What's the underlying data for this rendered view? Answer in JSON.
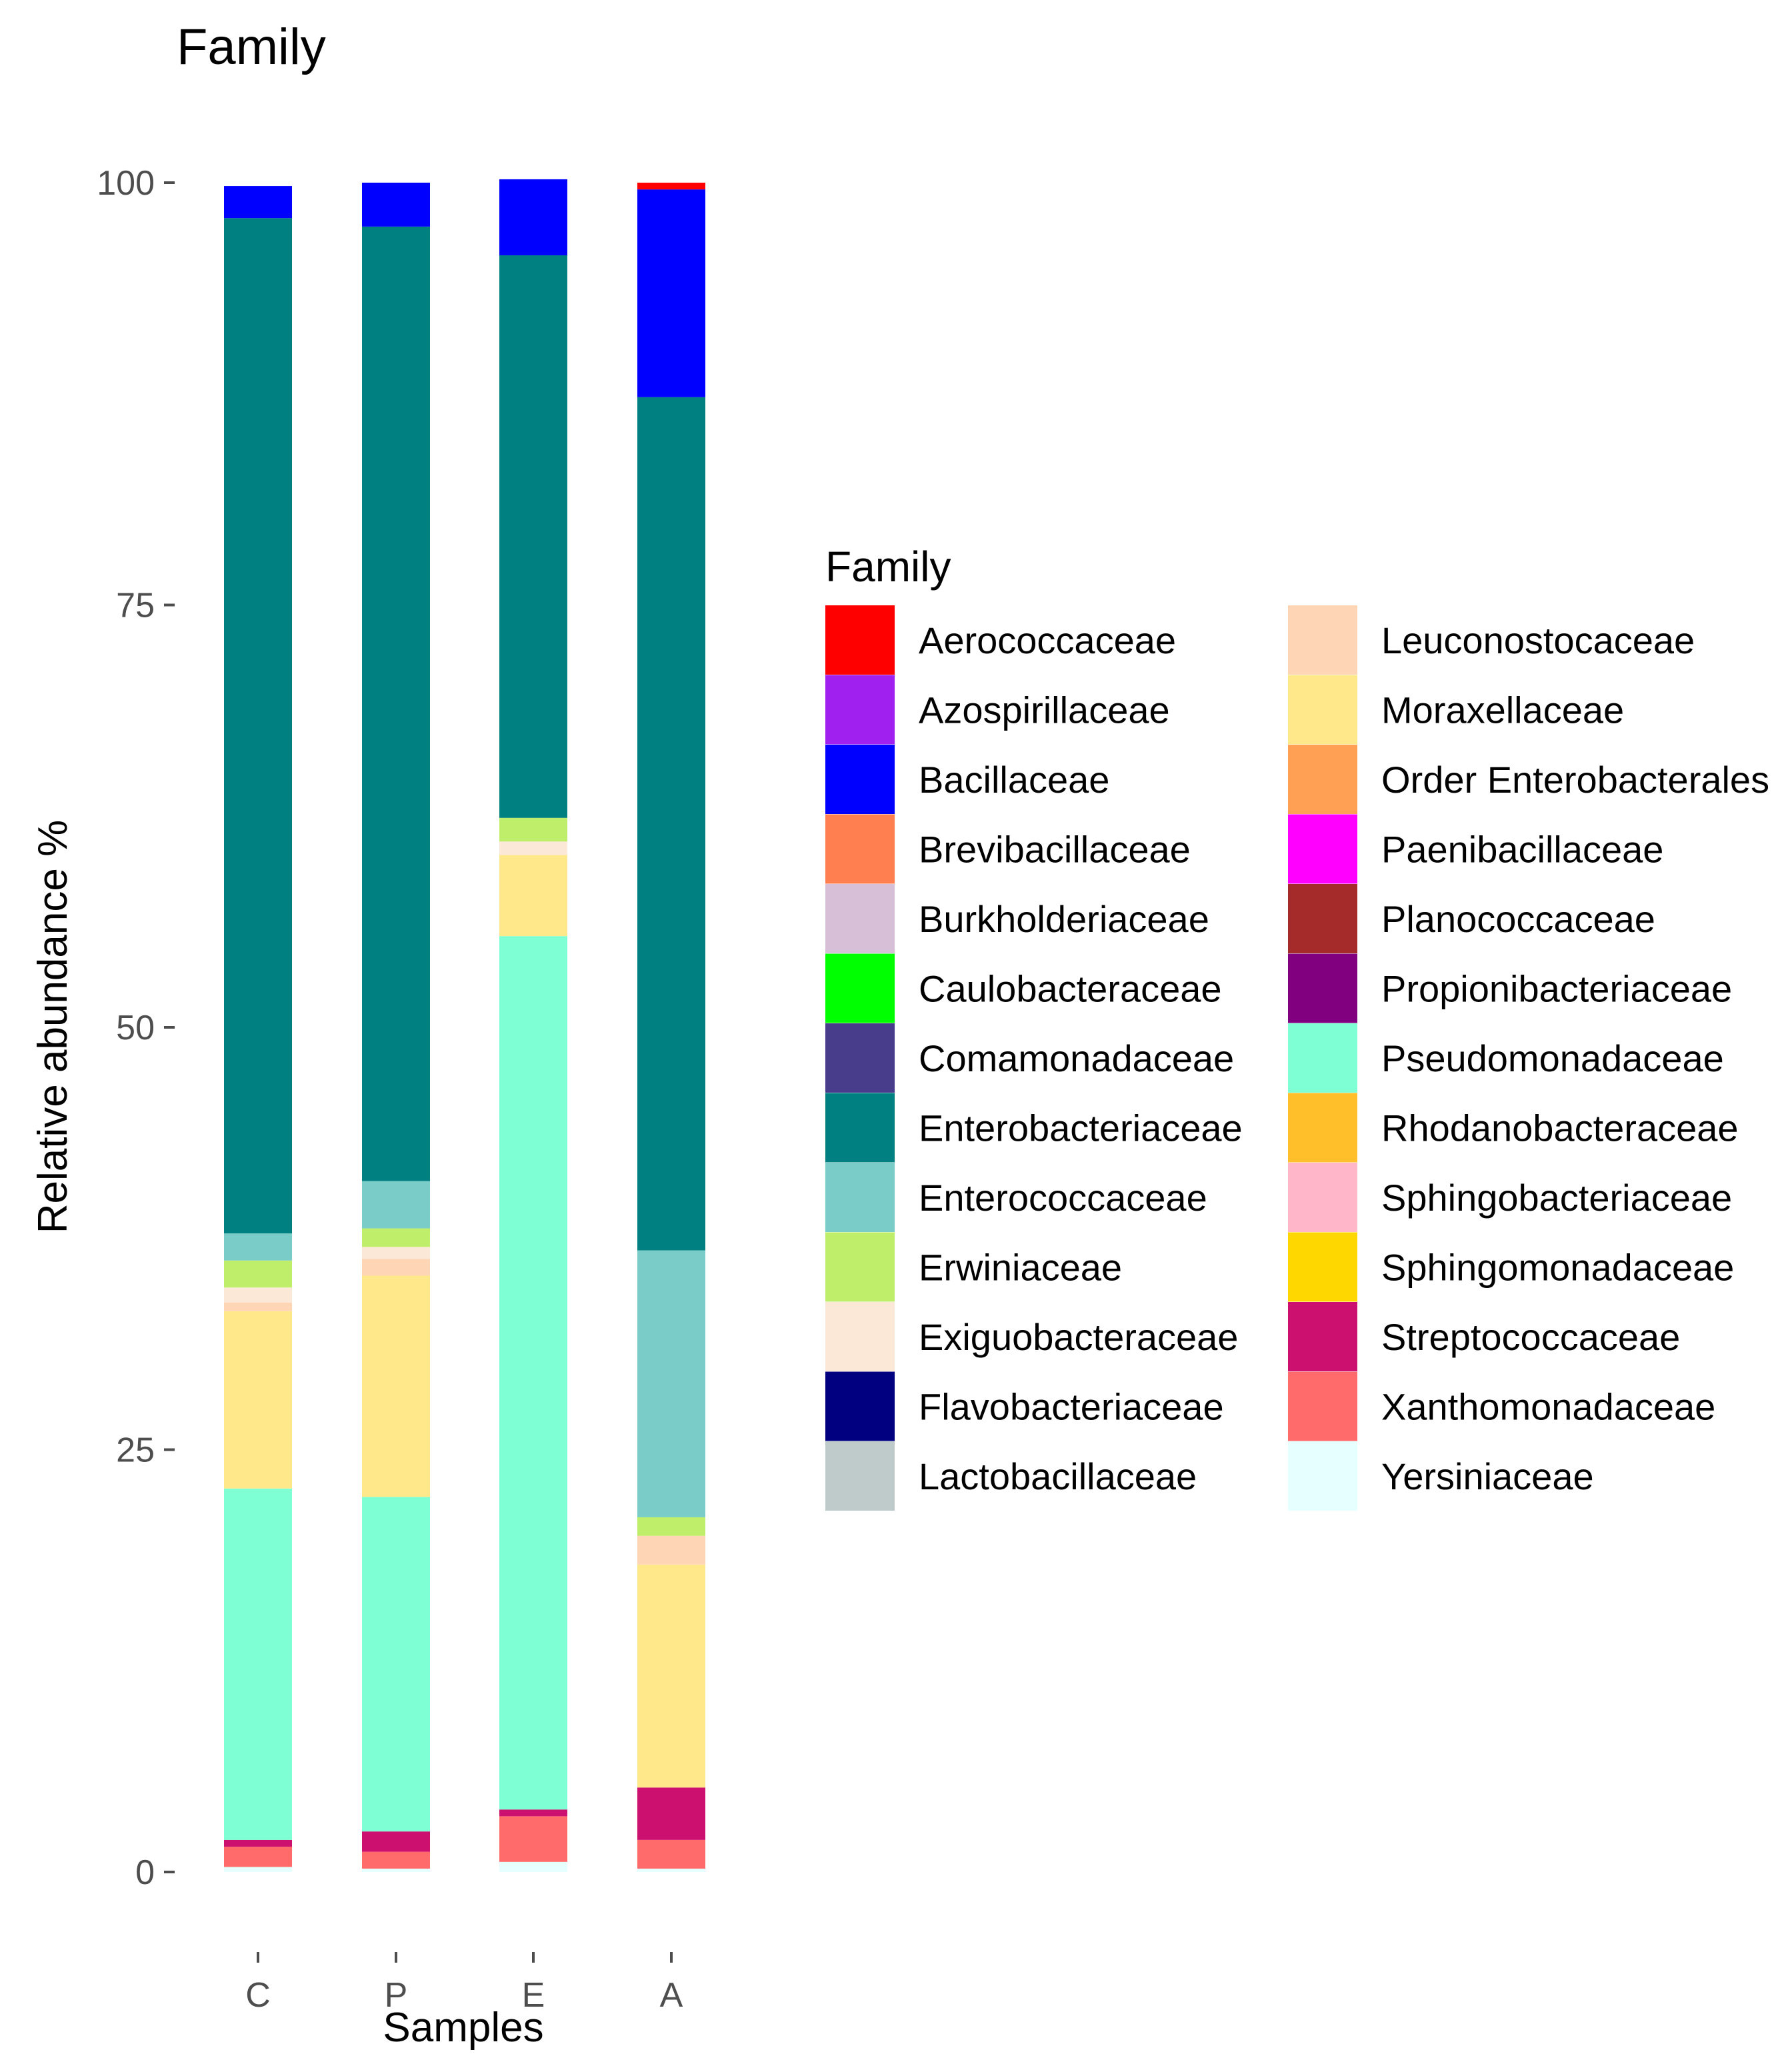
{
  "chart_data": {
    "type": "bar",
    "stacked": true,
    "title": "Family",
    "xlabel": "Samples",
    "ylabel": "Relative abundance %",
    "ylim": [
      0,
      100
    ],
    "yticks": [
      0,
      25,
      50,
      75,
      100
    ],
    "categories": [
      "C",
      "P",
      "E",
      "A"
    ],
    "legend": {
      "title": "Family",
      "placement": "right",
      "columns": 2
    },
    "grid": false,
    "series": [
      {
        "name": "Aerococcaceae",
        "color": "#FF0000",
        "values": [
          0,
          0,
          0,
          0.4
        ]
      },
      {
        "name": "Azospirillaceae",
        "color": "#A020F0",
        "values": [
          0,
          0,
          0,
          0
        ]
      },
      {
        "name": "Bacillaceae",
        "color": "#0000FF",
        "values": [
          1.9,
          2.6,
          4.5,
          12.3
        ]
      },
      {
        "name": "Brevibacillaceae",
        "color": "#FF7F50",
        "values": [
          0,
          0,
          0,
          0
        ]
      },
      {
        "name": "Burkholderiaceae",
        "color": "#D8BFD8",
        "values": [
          0,
          0,
          0,
          0
        ]
      },
      {
        "name": "Caulobacteraceae",
        "color": "#00FF00",
        "values": [
          0,
          0,
          0,
          0
        ]
      },
      {
        "name": "Comamonadaceae",
        "color": "#483D8B",
        "values": [
          0,
          0,
          0,
          0
        ]
      },
      {
        "name": "Enterobacteriaceae",
        "color": "#008080",
        "values": [
          60.1,
          56.5,
          33.3,
          50.5
        ]
      },
      {
        "name": "Enterococcaceae",
        "color": "#7ACCC8",
        "values": [
          1.6,
          2.8,
          0,
          15.8
        ]
      },
      {
        "name": "Erwiniaceae",
        "color": "#BFEF6A",
        "values": [
          1.6,
          1.1,
          1.4,
          1.1
        ]
      },
      {
        "name": "Exiguobacteraceae",
        "color": "#FBE8D6",
        "values": [
          0.9,
          0.7,
          0.8,
          0
        ]
      },
      {
        "name": "Flavobacteriaceae",
        "color": "#000080",
        "values": [
          0,
          0,
          0,
          0
        ]
      },
      {
        "name": "Lactobacillaceae",
        "color": "#BFCACA",
        "values": [
          0,
          0,
          0,
          0
        ]
      },
      {
        "name": "Leuconostocaceae",
        "color": "#FFD6B5",
        "values": [
          0.5,
          1.0,
          0,
          1.7
        ]
      },
      {
        "name": "Moraxellaceae",
        "color": "#FFE88A",
        "values": [
          10.5,
          13.1,
          4.8,
          13.2
        ]
      },
      {
        "name": "Order Enterobacterales",
        "color": "#FFA054",
        "values": [
          0,
          0,
          0,
          0
        ]
      },
      {
        "name": "Paenibacillaceae",
        "color": "#FF00FF",
        "values": [
          0,
          0,
          0,
          0
        ]
      },
      {
        "name": "Planococcaceae",
        "color": "#A52A2A",
        "values": [
          0,
          0,
          0,
          0
        ]
      },
      {
        "name": "Propionibacteriaceae",
        "color": "#800080",
        "values": [
          0,
          0,
          0,
          0
        ]
      },
      {
        "name": "Pseudomonadaceae",
        "color": "#7FFFD4",
        "values": [
          20.8,
          19.8,
          51.7,
          0
        ]
      },
      {
        "name": "Rhodanobacteraceae",
        "color": "#FFBF2A",
        "values": [
          0,
          0,
          0,
          0
        ]
      },
      {
        "name": "Sphingobacteriaceae",
        "color": "#FFB6C8",
        "values": [
          0,
          0,
          0,
          0
        ]
      },
      {
        "name": "Sphingomonadaceae",
        "color": "#FFD700",
        "values": [
          0,
          0,
          0,
          0
        ]
      },
      {
        "name": "Streptococcaceae",
        "color": "#CC1070",
        "values": [
          0.4,
          1.2,
          0.4,
          3.1
        ]
      },
      {
        "name": "Xanthomonadaceae",
        "color": "#FF6B6B",
        "values": [
          1.2,
          1.0,
          2.7,
          1.7
        ]
      },
      {
        "name": "Yersiniaceae",
        "color": "#E6FFFF",
        "values": [
          0.3,
          0.2,
          0.6,
          0.2
        ]
      }
    ]
  }
}
